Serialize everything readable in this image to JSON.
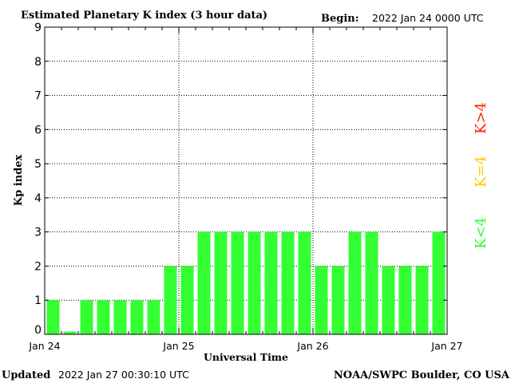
{
  "header": {
    "title": "Estimated Planetary K index (3 hour data)",
    "begin_label": "Begin:",
    "begin_value": "2022 Jan 24 0000 UTC"
  },
  "footer": {
    "updated_label": "Updated",
    "updated_value": "2022 Jan 27 00:30:10 UTC",
    "source": "NOAA/SWPC Boulder, CO USA"
  },
  "legend": {
    "items": [
      {
        "label": "K<4",
        "color": "#33ff33"
      },
      {
        "label": "K=4",
        "color": "#ffcc00"
      },
      {
        "label": "K>4",
        "color": "#ff2200"
      }
    ]
  },
  "colors": {
    "bar_low": "#33ff33",
    "bar_equal": "#ffcc00",
    "bar_high": "#ff2200",
    "axis": "#000000"
  },
  "chart_data": {
    "type": "bar",
    "title": "Estimated Planetary K index (3 hour data)",
    "xlabel": "Universal Time",
    "ylabel": "Kp index",
    "ylim": [
      0,
      9
    ],
    "yticks": [
      0,
      1,
      2,
      3,
      4,
      5,
      6,
      7,
      8,
      9
    ],
    "xtick_labels": [
      "Jan 24",
      "Jan 25",
      "Jan 26",
      "Jan 27"
    ],
    "interval_hours": 3,
    "grid": "dotted",
    "values": [
      1,
      0,
      1,
      1,
      1,
      1,
      1,
      2,
      2,
      3,
      3,
      3,
      3,
      3,
      3,
      3,
      2,
      2,
      3,
      3,
      2,
      2,
      2,
      3
    ]
  }
}
